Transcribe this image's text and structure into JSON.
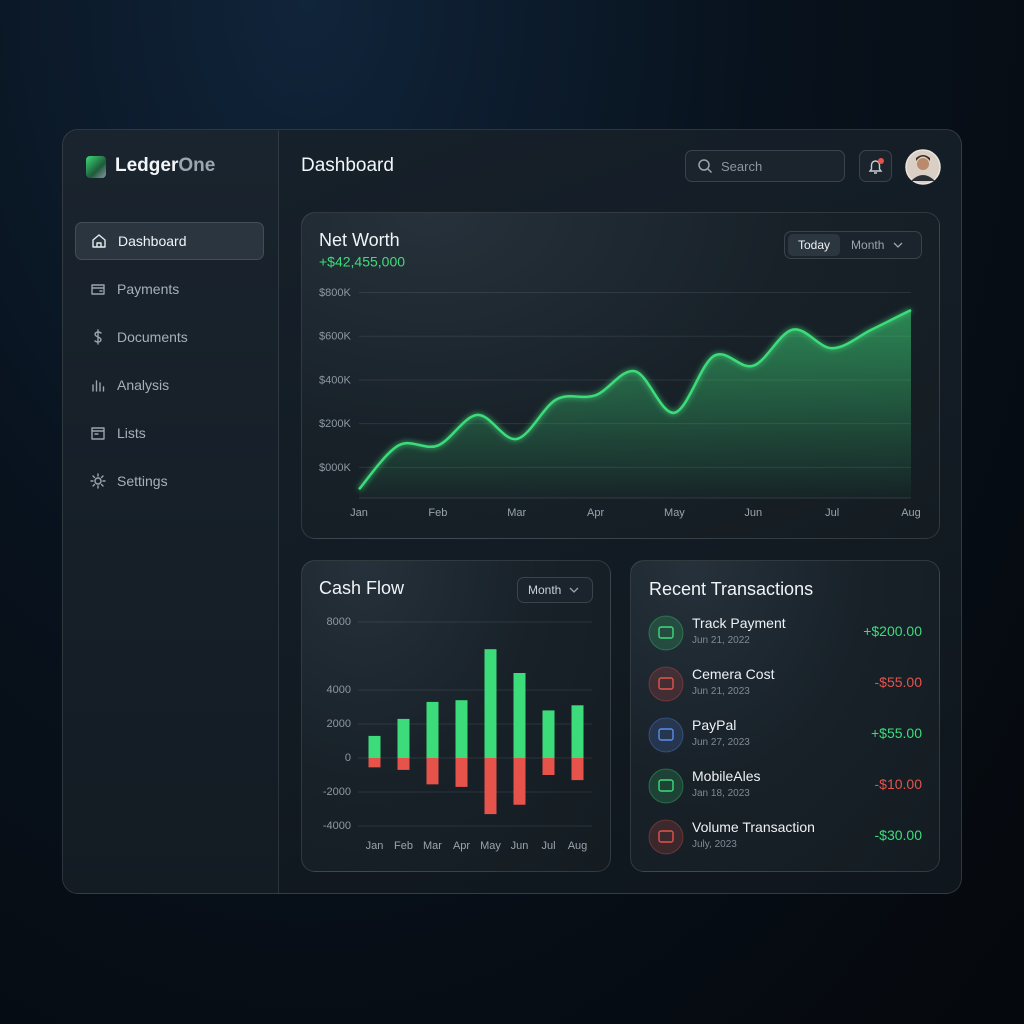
{
  "sidebar": {
    "brand": {
      "name": "Ledger",
      "suffix": "One"
    },
    "nav": [
      "Dashboard",
      "Payments",
      "Documents",
      "Analysis",
      "Lists",
      "Settings"
    ],
    "active": 0
  },
  "header": {
    "title": "Dashboard",
    "search_placeholder": "Search"
  },
  "net_worth_controls": [
    "Today",
    "Month"
  ],
  "cash_flow_controls": [
    "Month"
  ],
  "transactions": {
    "title": "Recent Transactions",
    "items": [
      {
        "name": "Track Payment",
        "date": "Jun 21, 2022",
        "amount": "+$200.00",
        "color": "#3ddc7a",
        "amount_color": "#3ddc7a"
      },
      {
        "name": "Cemera Cost",
        "date": "Jun 21, 2023",
        "amount": "-$55.00",
        "color": "#e5534b",
        "amount_color": "#e5534b"
      },
      {
        "name": "PayPal",
        "date": "Jun 27, 2023",
        "amount": "+$55.00",
        "color": "#5b8def",
        "amount_color": "#3ddc7a"
      },
      {
        "name": "MobileAles",
        "date": "Jan 18, 2023",
        "amount": "-$10.00",
        "color": "#3ddc7a",
        "amount_color": "#e5534b"
      },
      {
        "name": "Volume Transaction",
        "date": "July, 2023",
        "amount": "-$30.00",
        "color": "#e5534b",
        "amount_color": "#3ddc7a"
      }
    ]
  },
  "chart_data": [
    {
      "type": "area",
      "title": "Net Worth",
      "subtitle": "+$42,455,000",
      "categories": [
        "Jan",
        null,
        "Feb",
        null,
        "Mar",
        null,
        "Apr",
        null,
        "May",
        null,
        "Jun",
        null,
        "Jul",
        null,
        "Aug"
      ],
      "values": [
        -100000,
        100000,
        100000,
        240000,
        130000,
        310000,
        330000,
        440000,
        250000,
        510000,
        465000,
        630000,
        545000,
        630000,
        720000
      ],
      "color": "#3ddc7a",
      "ylim": [
        -140000,
        880000
      ],
      "yticks": [
        {
          "value": 0,
          "label": "$000K"
        },
        {
          "value": 200000,
          "label": "$200K"
        },
        {
          "value": 400000,
          "label": "$400K"
        },
        {
          "value": 600000,
          "label": "$600K"
        },
        {
          "value": 800000,
          "label": "$800K"
        }
      ],
      "grid": true
    },
    {
      "type": "bar",
      "title": "Cash Flow",
      "categories": [
        "Jan",
        "Feb",
        "Mar",
        "Apr",
        "May",
        "Jun",
        "Jul",
        "Aug"
      ],
      "series": [
        {
          "color": "#3ddc7a",
          "values": [
            1300,
            2300,
            3300,
            3400,
            6400,
            5000,
            2800,
            3100
          ]
        },
        {
          "color": "#e5534b",
          "values": [
            -550,
            -700,
            -1550,
            -1700,
            -3300,
            -2750,
            -1000,
            -1300
          ]
        }
      ],
      "ylim": [
        -4000,
        8000
      ],
      "yticks": [
        8000,
        4000,
        2000,
        0,
        -2000,
        -4000
      ],
      "grid": true
    }
  ]
}
